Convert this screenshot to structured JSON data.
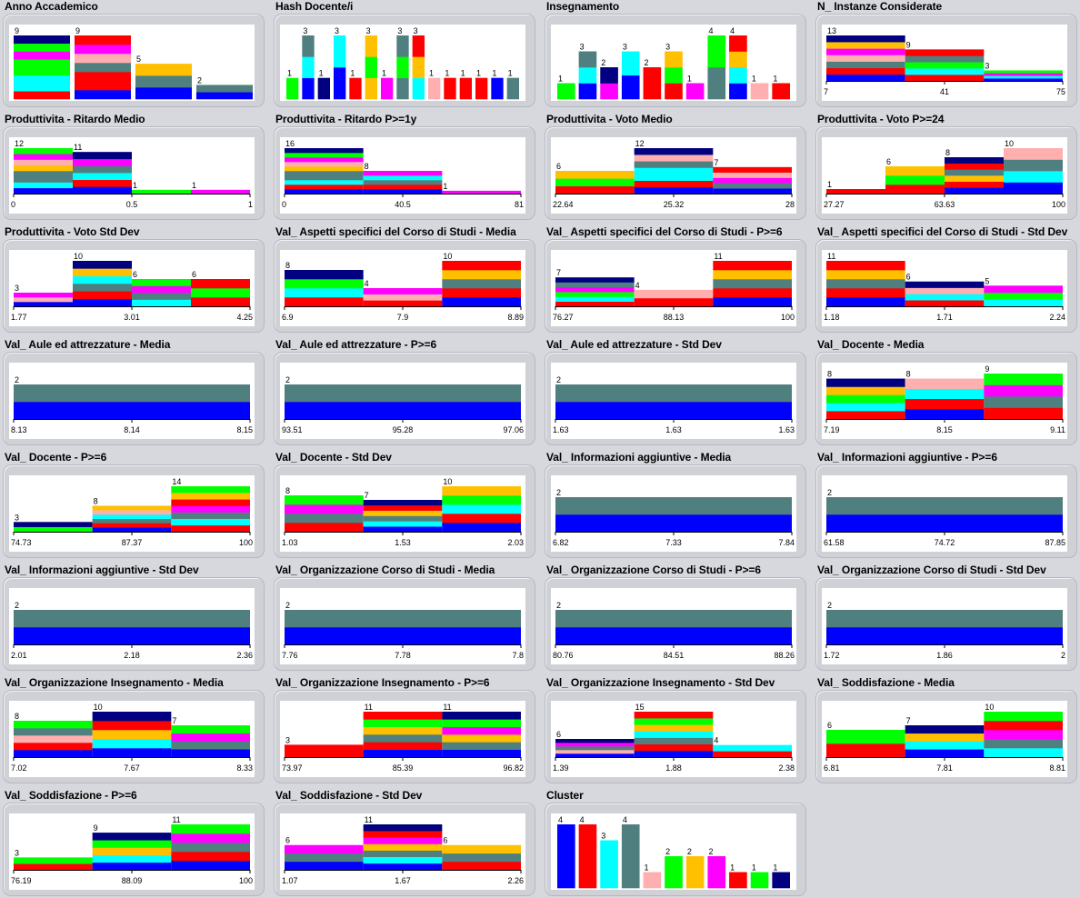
{
  "colors": {
    "c1": "#0000ff",
    "c2": "#ff0000",
    "c3": "#00ffff",
    "c4": "#00ff00",
    "c5": "#ffc000",
    "c6": "#ff00ff",
    "c7": "#ffafaf",
    "c8": "#4f7f7f",
    "c9": "#000080"
  },
  "chart_data": [
    {
      "title": "Anno Accademico",
      "type": "bar",
      "values": [
        9,
        9,
        5,
        2
      ],
      "stacks": [
        [
          "c2",
          "c3",
          "c3",
          "c4",
          "c4",
          "c6",
          "c4",
          "c9"
        ],
        [
          "c1",
          "c2",
          "c2",
          "c8",
          "c7",
          "c6",
          "c2"
        ],
        [
          "c1",
          "c8",
          "c5"
        ],
        [
          "c1",
          "c8"
        ]
      ]
    },
    {
      "title": "Hash Docente/i",
      "type": "bar",
      "values": [
        1,
        3,
        1,
        3,
        1,
        3,
        1,
        3,
        3,
        1,
        1,
        1,
        1,
        1,
        1
      ],
      "stacks": [
        [
          "c4"
        ],
        [
          "c1",
          "c3",
          "c8"
        ],
        [
          "c9"
        ],
        [
          "c1",
          "c3"
        ],
        [
          "c2"
        ],
        [
          "c5",
          "c4",
          "c5"
        ],
        [
          "c6"
        ],
        [
          "c8",
          "c4",
          "c8"
        ],
        [
          "c3",
          "c5",
          "c2"
        ],
        [
          "c7"
        ],
        [
          "c2"
        ],
        [
          "c2"
        ],
        [
          "c2"
        ],
        [
          "c1"
        ],
        [
          "c8"
        ]
      ]
    },
    {
      "title": "Insegnamento",
      "type": "bar",
      "values": [
        1,
        3,
        2,
        3,
        2,
        3,
        1,
        4,
        4,
        1,
        1
      ],
      "stacks": [
        [
          "c4"
        ],
        [
          "c1",
          "c3",
          "c8"
        ],
        [
          "c6",
          "c9"
        ],
        [
          "c1",
          "c3"
        ],
        [
          "c2"
        ],
        [
          "c2",
          "c4",
          "c5"
        ],
        [
          "c6"
        ],
        [
          "c8",
          "c4"
        ],
        [
          "c1",
          "c3",
          "c5",
          "c2"
        ],
        [
          "c7"
        ],
        [
          "c2"
        ]
      ]
    },
    {
      "title": "N_ Instanze Considerate",
      "type": "histogram",
      "values": [
        13,
        9,
        3
      ],
      "ticks": [
        "7",
        "41",
        "75"
      ],
      "stacks": [
        [
          "c1",
          "c2",
          "c8",
          "c7",
          "c6",
          "c5",
          "c9"
        ],
        [
          "c2",
          "c3",
          "c4",
          "c8",
          "c2"
        ],
        [
          "c1",
          "c3",
          "c6",
          "c4"
        ]
      ]
    },
    {
      "title": "Produttivita - Ritardo Medio",
      "type": "histogram",
      "values": [
        12,
        11,
        1,
        1
      ],
      "ticks": [
        "0",
        "0.5",
        "1"
      ],
      "stacks": [
        [
          "c1",
          "c3",
          "c8",
          "c8",
          "c5",
          "c7",
          "c6",
          "c4"
        ],
        [
          "c1",
          "c2",
          "c3",
          "c8",
          "c6",
          "c9"
        ],
        [
          "c4"
        ],
        [
          "c6"
        ]
      ]
    },
    {
      "title": "Produttivita - Ritardo P>=1y",
      "type": "histogram",
      "values": [
        16,
        8,
        1
      ],
      "ticks": [
        "0",
        "40.5",
        "81"
      ],
      "stacks": [
        [
          "c1",
          "c2",
          "c3",
          "c8",
          "c8",
          "c5",
          "c7",
          "c6",
          "c4",
          "c9"
        ],
        [
          "c1",
          "c2",
          "c8",
          "c3",
          "c6"
        ],
        [
          "c6"
        ]
      ]
    },
    {
      "title": "Produttivita - Voto Medio",
      "type": "histogram",
      "values": [
        6,
        12,
        7
      ],
      "ticks": [
        "22.64",
        "25.32",
        "28"
      ],
      "stacks": [
        [
          "c2",
          "c4",
          "c5"
        ],
        [
          "c1",
          "c2",
          "c3",
          "c3",
          "c8",
          "c7",
          "c9"
        ],
        [
          "c1",
          "c8",
          "c6",
          "c7",
          "c2"
        ]
      ]
    },
    {
      "title": "Produttivita - Voto P>=24",
      "type": "histogram",
      "values": [
        1,
        6,
        8,
        10
      ],
      "ticks": [
        "27.27",
        "63.63",
        "100"
      ],
      "stacks": [
        [
          "c2"
        ],
        [
          "c2",
          "c4",
          "c5"
        ],
        [
          "c1",
          "c2",
          "c5",
          "c8",
          "c2",
          "c9"
        ],
        [
          "c1",
          "c3",
          "c8",
          "c7"
        ]
      ]
    },
    {
      "title": "Produttivita - Voto Std Dev",
      "type": "histogram",
      "values": [
        3,
        10,
        6,
        6
      ],
      "ticks": [
        "1.77",
        "3.01",
        "4.25"
      ],
      "stacks": [
        [
          "c1",
          "c7",
          "c6"
        ],
        [
          "c1",
          "c2",
          "c8",
          "c3",
          "c5",
          "c9"
        ],
        [
          "c3",
          "c8",
          "c6",
          "c4"
        ],
        [
          "c2",
          "c4",
          "c2"
        ]
      ]
    },
    {
      "title": "Val_ Aspetti specifici del Corso di Studi - Media",
      "type": "histogram",
      "values": [
        8,
        4,
        10
      ],
      "ticks": [
        "6.9",
        "7.9",
        "8.89"
      ],
      "stacks": [
        [
          "c2",
          "c3",
          "c4",
          "c9"
        ],
        [
          "c2",
          "c7",
          "c6"
        ],
        [
          "c1",
          "c2",
          "c8",
          "c5",
          "c2"
        ]
      ]
    },
    {
      "title": "Val_ Aspetti specifici del Corso di Studi - P>=6",
      "type": "histogram",
      "values": [
        7,
        4,
        11
      ],
      "ticks": [
        "76.27",
        "88.13",
        "100"
      ],
      "stacks": [
        [
          "c2",
          "c3",
          "c4",
          "c6",
          "c8",
          "c9"
        ],
        [
          "c2",
          "c7"
        ],
        [
          "c1",
          "c2",
          "c8",
          "c5",
          "c2"
        ]
      ]
    },
    {
      "title": "Val_ Aspetti specifici del Corso di Studi - Std Dev",
      "type": "histogram",
      "values": [
        11,
        6,
        5
      ],
      "ticks": [
        "1.18",
        "1.71",
        "2.24"
      ],
      "stacks": [
        [
          "c1",
          "c2",
          "c8",
          "c5",
          "c2"
        ],
        [
          "c2",
          "c3",
          "c7",
          "c9"
        ],
        [
          "c3",
          "c4",
          "c6"
        ]
      ]
    },
    {
      "title": "Val_ Aule ed attrezzature - Media",
      "type": "histogram",
      "values": [
        2
      ],
      "ticks": [
        "8.13",
        "8.14",
        "8.15"
      ],
      "stacks": [
        [
          "c1",
          "c8"
        ]
      ]
    },
    {
      "title": "Val_ Aule ed attrezzature - P>=6",
      "type": "histogram",
      "values": [
        2
      ],
      "ticks": [
        "93.51",
        "95.28",
        "97.06"
      ],
      "stacks": [
        [
          "c1",
          "c8"
        ]
      ]
    },
    {
      "title": "Val_ Aule ed attrezzature - Std Dev",
      "type": "histogram",
      "values": [
        2
      ],
      "ticks": [
        "1.63",
        "1.63",
        "1.63"
      ],
      "stacks": [
        [
          "c1",
          "c8"
        ]
      ]
    },
    {
      "title": "Val_ Docente - Media",
      "type": "histogram",
      "values": [
        8,
        8,
        9
      ],
      "ticks": [
        "7.19",
        "8.15",
        "9.11"
      ],
      "stacks": [
        [
          "c2",
          "c3",
          "c4",
          "c5",
          "c9"
        ],
        [
          "c1",
          "c2",
          "c3",
          "c7"
        ],
        [
          "c2",
          "c8",
          "c6",
          "c4"
        ]
      ]
    },
    {
      "title": "Val_ Docente - P>=6",
      "type": "histogram",
      "values": [
        3,
        8,
        14
      ],
      "ticks": [
        "74.73",
        "87.37",
        "100"
      ],
      "stacks": [
        [
          "c4",
          "c9"
        ],
        [
          "c1",
          "c2",
          "c8",
          "c3",
          "c7",
          "c5"
        ],
        [
          "c2",
          "c3",
          "c8",
          "c6",
          "c2",
          "c5",
          "c4"
        ]
      ]
    },
    {
      "title": "Val_ Docente - Std Dev",
      "type": "histogram",
      "values": [
        8,
        7,
        10
      ],
      "ticks": [
        "1.03",
        "1.53",
        "2.03"
      ],
      "stacks": [
        [
          "c2",
          "c8",
          "c6",
          "c4"
        ],
        [
          "c1",
          "c3",
          "c8",
          "c5",
          "c2",
          "c9"
        ],
        [
          "c1",
          "c2",
          "c3",
          "c4",
          "c5"
        ]
      ]
    },
    {
      "title": "Val_ Informazioni aggiuntive - Media",
      "type": "histogram",
      "values": [
        2
      ],
      "ticks": [
        "6.82",
        "7.33",
        "7.84"
      ],
      "stacks": [
        [
          "c1",
          "c8"
        ]
      ]
    },
    {
      "title": "Val_ Informazioni aggiuntive - P>=6",
      "type": "histogram",
      "values": [
        2
      ],
      "ticks": [
        "61.58",
        "74.72",
        "87.85"
      ],
      "stacks": [
        [
          "c1",
          "c8"
        ]
      ]
    },
    {
      "title": "Val_ Informazioni aggiuntive - Std Dev",
      "type": "histogram",
      "values": [
        2
      ],
      "ticks": [
        "2.01",
        "2.18",
        "2.36"
      ],
      "stacks": [
        [
          "c1",
          "c8"
        ]
      ]
    },
    {
      "title": "Val_ Organizzazione Corso di Studi - Media",
      "type": "histogram",
      "values": [
        2
      ],
      "ticks": [
        "7.76",
        "7.78",
        "7.8"
      ],
      "stacks": [
        [
          "c1",
          "c8"
        ]
      ]
    },
    {
      "title": "Val_ Organizzazione Corso di Studi - P>=6",
      "type": "histogram",
      "values": [
        2
      ],
      "ticks": [
        "80.76",
        "84.51",
        "88.26"
      ],
      "stacks": [
        [
          "c1",
          "c8"
        ]
      ]
    },
    {
      "title": "Val_ Organizzazione Corso di Studi - Std Dev",
      "type": "histogram",
      "values": [
        2
      ],
      "ticks": [
        "1.72",
        "1.86",
        "2"
      ],
      "stacks": [
        [
          "c1",
          "c8"
        ]
      ]
    },
    {
      "title": "Val_ Organizzazione Insegnamento - Media",
      "type": "histogram",
      "values": [
        8,
        10,
        7
      ],
      "ticks": [
        "7.02",
        "7.67",
        "8.33"
      ],
      "stacks": [
        [
          "c1",
          "c2",
          "c7",
          "c8",
          "c4"
        ],
        [
          "c1",
          "c3",
          "c5",
          "c2",
          "c9"
        ],
        [
          "c1",
          "c8",
          "c6",
          "c4"
        ]
      ]
    },
    {
      "title": "Val_ Organizzazione Insegnamento - P>=6",
      "type": "histogram",
      "values": [
        3,
        11,
        11
      ],
      "ticks": [
        "73.97",
        "85.39",
        "96.82"
      ],
      "stacks": [
        [
          "c2"
        ],
        [
          "c1",
          "c2",
          "c8",
          "c5",
          "c4",
          "c2"
        ],
        [
          "c1",
          "c8",
          "c5",
          "c6",
          "c4",
          "c9"
        ]
      ]
    },
    {
      "title": "Val_ Organizzazione Insegnamento - Std Dev",
      "type": "histogram",
      "values": [
        6,
        15,
        4
      ],
      "ticks": [
        "1.39",
        "1.88",
        "2.38"
      ],
      "stacks": [
        [
          "c1",
          "c7",
          "c8",
          "c6",
          "c9"
        ],
        [
          "c1",
          "c2",
          "c8",
          "c3",
          "c5",
          "c4",
          "c2"
        ],
        [
          "c2",
          "c3"
        ]
      ]
    },
    {
      "title": "Val_ Soddisfazione - Media",
      "type": "histogram",
      "values": [
        6,
        7,
        10
      ],
      "ticks": [
        "6.81",
        "7.81",
        "8.81"
      ],
      "stacks": [
        [
          "c2",
          "c4"
        ],
        [
          "c1",
          "c3",
          "c5",
          "c9"
        ],
        [
          "c3",
          "c8",
          "c6",
          "c2",
          "c4"
        ]
      ]
    },
    {
      "title": "Val_ Soddisfazione - P>=6",
      "type": "histogram",
      "values": [
        3,
        9,
        11
      ],
      "ticks": [
        "76.19",
        "88.09",
        "100"
      ],
      "stacks": [
        [
          "c2",
          "c4"
        ],
        [
          "c1",
          "c3",
          "c5",
          "c4",
          "c9"
        ],
        [
          "c1",
          "c2",
          "c8",
          "c6",
          "c4"
        ]
      ]
    },
    {
      "title": "Val_ Soddisfazione - Std Dev",
      "type": "histogram",
      "values": [
        6,
        11,
        6
      ],
      "ticks": [
        "1.07",
        "1.67",
        "2.26"
      ],
      "stacks": [
        [
          "c1",
          "c8",
          "c6"
        ],
        [
          "c1",
          "c3",
          "c8",
          "c5",
          "c6",
          "c2",
          "c9"
        ],
        [
          "c2",
          "c8",
          "c5"
        ]
      ]
    },
    {
      "title": "Cluster",
      "type": "bar",
      "values": [
        4,
        4,
        3,
        4,
        1,
        2,
        2,
        2,
        1,
        1,
        1
      ],
      "stacks": [
        [
          "c1"
        ],
        [
          "c2"
        ],
        [
          "c3"
        ],
        [
          "c8"
        ],
        [
          "c7"
        ],
        [
          "c4"
        ],
        [
          "c5"
        ],
        [
          "c6"
        ],
        [
          "c2"
        ],
        [
          "c4"
        ],
        [
          "c9"
        ]
      ]
    }
  ]
}
